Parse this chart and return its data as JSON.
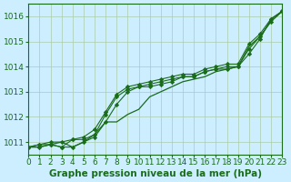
{
  "background_color": "#cceeff",
  "grid_color": "#aaccaa",
  "line_color": "#1a6b1a",
  "title": "Graphe pression niveau de la mer (hPa)",
  "xlabel_fontsize": 7.5,
  "tick_fontsize": 6.5,
  "xlim": [
    0,
    23
  ],
  "ylim": [
    1010.5,
    1016.5
  ],
  "yticks": [
    1011,
    1012,
    1013,
    1014,
    1015,
    1016
  ],
  "xticks": [
    0,
    1,
    2,
    3,
    4,
    5,
    6,
    7,
    8,
    9,
    10,
    11,
    12,
    13,
    14,
    15,
    16,
    17,
    18,
    19,
    20,
    21,
    22,
    23
  ],
  "series": [
    {
      "values": [
        1010.8,
        1010.8,
        1010.9,
        1011.0,
        1010.8,
        1011.0,
        1011.3,
        1011.8,
        1011.8,
        1012.1,
        1012.3,
        1012.8,
        1013.0,
        1013.2,
        1013.4,
        1013.5,
        1013.6,
        1013.8,
        1013.9,
        1014.0,
        1014.8,
        1015.2,
        1015.8,
        1016.2
      ],
      "markers": false
    },
    {
      "values": [
        1010.8,
        1010.9,
        1010.9,
        1010.8,
        1010.8,
        1011.0,
        1011.2,
        1011.8,
        1012.5,
        1013.0,
        1013.2,
        1013.2,
        1013.3,
        1013.4,
        1013.6,
        1013.6,
        1013.8,
        1013.9,
        1013.9,
        1014.0,
        1014.5,
        1015.1,
        1015.9,
        1016.2
      ],
      "markers": true
    },
    {
      "values": [
        1010.8,
        1010.8,
        1010.9,
        1010.8,
        1011.1,
        1011.1,
        1011.3,
        1012.1,
        1012.8,
        1013.1,
        1013.2,
        1013.3,
        1013.4,
        1013.5,
        1013.6,
        1013.6,
        1013.8,
        1013.9,
        1014.0,
        1014.0,
        1014.7,
        1015.2,
        1015.8,
        1016.2
      ],
      "markers": true
    },
    {
      "values": [
        1010.8,
        1010.9,
        1011.0,
        1011.0,
        1011.1,
        1011.2,
        1011.5,
        1012.2,
        1012.9,
        1013.2,
        1013.3,
        1013.4,
        1013.5,
        1013.6,
        1013.7,
        1013.7,
        1013.9,
        1014.0,
        1014.1,
        1014.1,
        1014.9,
        1015.3,
        1015.9,
        1016.2
      ],
      "markers": true
    }
  ]
}
